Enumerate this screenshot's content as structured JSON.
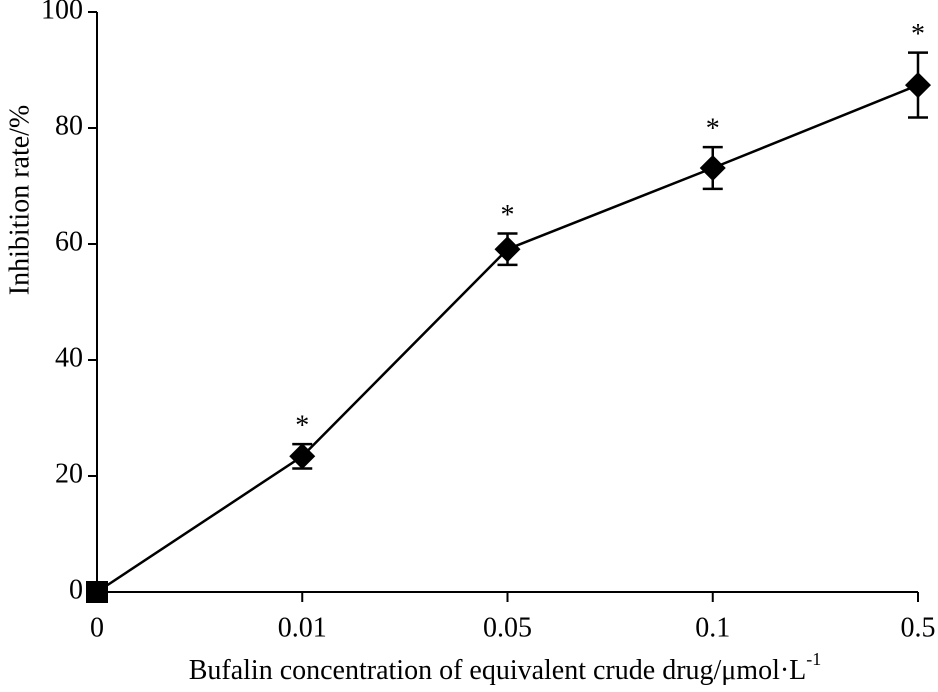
{
  "chart_data": {
    "type": "line",
    "x_label": "Bufalin concentration of equivalent crude drug/μmol·L",
    "x_label_superscript": "-1",
    "y_label": "Inhibition rate/%",
    "categories": [
      "0",
      "0.01",
      "0.05",
      "0.1",
      "0.5"
    ],
    "series": [
      {
        "color": "#000000",
        "values": [
          0,
          23.4,
          59.1,
          73.1,
          87.4
        ],
        "errors": [
          null,
          2.1,
          2.7,
          3.6,
          5.6
        ],
        "markers": [
          "square",
          "diamond",
          "diamond",
          "diamond",
          "diamond"
        ],
        "annotations": [
          null,
          "*",
          "*",
          "*",
          "*"
        ]
      }
    ],
    "ylim": [
      0,
      100
    ],
    "yticks": [
      0,
      20,
      40,
      60,
      80,
      100
    ],
    "grid": false
  }
}
